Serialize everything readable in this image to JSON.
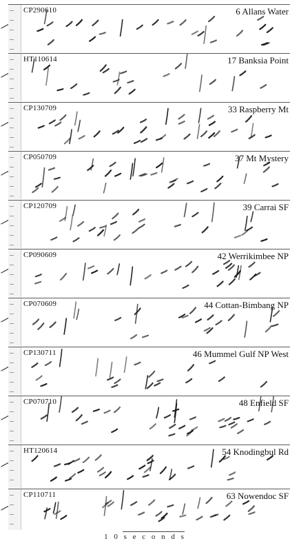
{
  "recordings": [
    {
      "code": "CP290610",
      "site": "6  Allans Water"
    },
    {
      "code": "HT110614",
      "site": "17  Banksia Point"
    },
    {
      "code": "CP130709",
      "site": "33  Raspberry Mt"
    },
    {
      "code": "CP050709",
      "site": "37  Mt Mystery"
    },
    {
      "code": "CP120709",
      "site": "39  Carrai SF"
    },
    {
      "code": "CP090609",
      "site": "42  Werrikimbee NP"
    },
    {
      "code": "CP070609",
      "site": "44  Cottan-Bimbang NP"
    },
    {
      "code": "CP130711",
      "site": "46  Mummel Gulf NP West"
    },
    {
      "code": "CP070710",
      "site": "48  Enfield SF"
    },
    {
      "code": "HT120614",
      "site": "54  Knodingbul Rd"
    },
    {
      "code": "CP110711",
      "site": "63  Nowendoc SF"
    }
  ],
  "time_scale": {
    "label": "1 0  s e c o n d s"
  },
  "colors": {
    "ink": "#111111",
    "frame": "#5a5a5a"
  }
}
